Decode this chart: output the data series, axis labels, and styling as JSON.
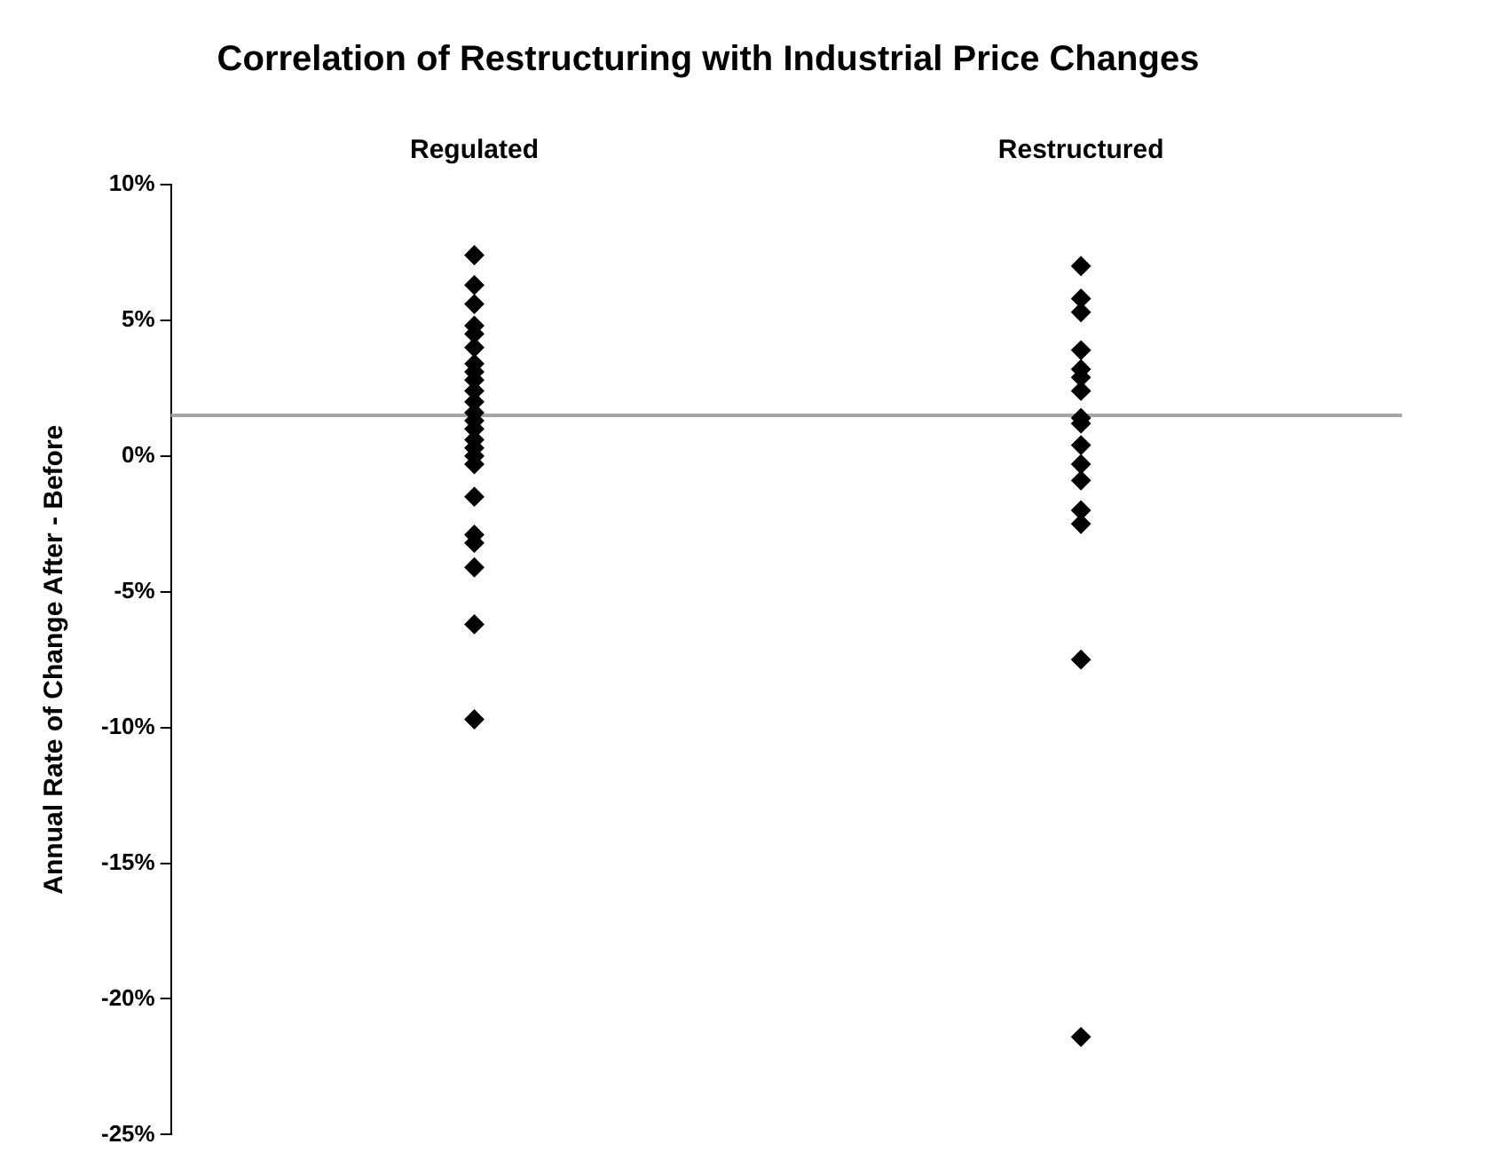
{
  "chart_data": {
    "type": "scatter",
    "title": "Correlation of Restructuring with Industrial Price Changes",
    "ylabel": "Annual Rate of Change After - Before",
    "categories": [
      "Regulated",
      "Restructured"
    ],
    "series": [
      {
        "color": "#000000",
        "x": [
          "Regulated",
          "Regulated",
          "Regulated",
          "Regulated",
          "Regulated",
          "Regulated",
          "Regulated",
          "Regulated",
          "Regulated",
          "Regulated",
          "Regulated",
          "Regulated",
          "Regulated",
          "Regulated",
          "Regulated",
          "Regulated",
          "Regulated",
          "Regulated",
          "Regulated",
          "Regulated",
          "Regulated",
          "Regulated",
          "Regulated",
          "Regulated"
        ],
        "values": [
          7.4,
          6.3,
          5.6,
          4.8,
          4.5,
          4.0,
          3.4,
          3.1,
          2.8,
          2.4,
          2.0,
          1.6,
          1.3,
          1.0,
          0.6,
          0.3,
          0.0,
          -0.3,
          -1.5,
          -2.9,
          -3.2,
          -4.1,
          -6.2,
          -9.7
        ]
      },
      {
        "color": "#000000",
        "x": [
          "Restructured",
          "Restructured",
          "Restructured",
          "Restructured",
          "Restructured",
          "Restructured",
          "Restructured",
          "Restructured",
          "Restructured",
          "Restructured",
          "Restructured",
          "Restructured",
          "Restructured",
          "Restructured",
          "Restructured",
          "Restructured"
        ],
        "values": [
          7.0,
          5.8,
          5.3,
          3.9,
          3.2,
          2.9,
          2.4,
          1.4,
          1.2,
          0.4,
          -0.3,
          -0.9,
          -2.0,
          -2.5,
          -7.5,
          -21.4
        ]
      }
    ],
    "ylim": [
      -25,
      10
    ],
    "yticks": [
      {
        "value": -25,
        "label": "-25%"
      },
      {
        "value": -20,
        "label": "-20%"
      },
      {
        "value": -15,
        "label": "-15%"
      },
      {
        "value": -10,
        "label": "-10%"
      },
      {
        "value": -5,
        "label": "-5%"
      },
      {
        "value": 0,
        "label": "0%"
      },
      {
        "value": 5,
        "label": "5%"
      },
      {
        "value": 10,
        "label": "10%"
      }
    ],
    "ref_lines": [
      {
        "axis": "y",
        "value": 1.5,
        "color": "#a6a6a6"
      }
    ],
    "marker": "diamond",
    "grid": false,
    "legend": false
  }
}
